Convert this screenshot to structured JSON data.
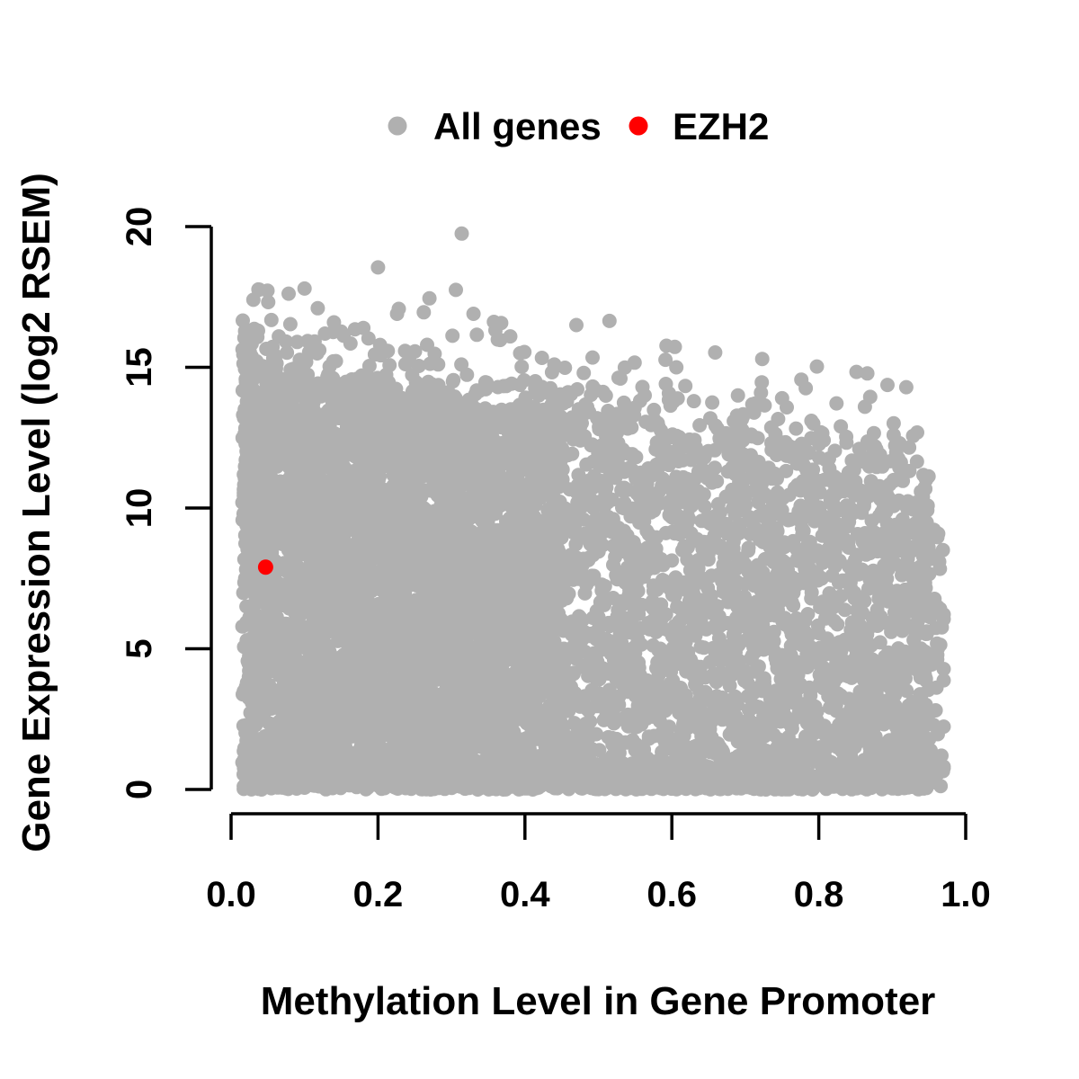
{
  "figure": {
    "legend": {
      "items": [
        {
          "label": "All genes",
          "color": "#b0b0b0"
        },
        {
          "label": "EZH2",
          "color": "#ff0000"
        }
      ]
    },
    "colors": {
      "all_genes": "#b0b0b0",
      "ezh2": "#ff0000",
      "axis": "#000000",
      "background": "#ffffff"
    }
  },
  "chart_data": {
    "type": "scatter",
    "title": "",
    "xlabel": "Methylation Level in Gene Promoter",
    "ylabel": "Gene Expression Level (log2 RSEM)",
    "xlim": [
      0,
      1
    ],
    "ylim": [
      0,
      20
    ],
    "grid": false,
    "legend_position": "top-center",
    "x_axis": {
      "tick_values": [
        0,
        0.2,
        0.4,
        0.6,
        0.8,
        1.0
      ],
      "tick_labels": [
        "0.0",
        "0.2",
        "0.4",
        "0.6",
        "0.8",
        "1.0"
      ]
    },
    "y_axis": {
      "tick_values": [
        0,
        5,
        10,
        15,
        20
      ],
      "tick_labels": [
        "0",
        "5",
        "10",
        "15",
        "20"
      ]
    },
    "series": [
      {
        "name": "All genes",
        "color": "#b0b0b0",
        "marker_radius_px": 8,
        "summary": "Several thousand genes forming a near-solid cloud: methylation 0.01-0.97, expression 0-19.8. Very dense solid block for x 0.02-0.45 up to ~14-15 log2 RSEM; moderately dense with gaps for x 0.45-0.95 up to ~11-13.5; expression upper envelope declines from ~15 at x=0 to ~11.5 at x=0.95; scattered outliers above the envelope.",
        "generated": true,
        "generation": {
          "seed": 42,
          "envelope": {
            "intercept": 14.9,
            "slope": -3.6
          },
          "x_clip": [
            0.01,
            0.97
          ],
          "y_clip": [
            0,
            19.85
          ],
          "components": [
            {
              "name": "dense-left-block",
              "count": 4600,
              "x0": 0.015,
              "xspan": 0.435,
              "xpow": 1.0,
              "y_mode": "env",
              "ypow": 1.0
            },
            {
              "name": "mid-right-block",
              "count": 2400,
              "x0": 0.45,
              "xspan": 0.5,
              "xpow": 1.0,
              "y_mode": "env",
              "ypow": 1.3
            },
            {
              "name": "bottom-strip",
              "count": 700,
              "x0": 0.015,
              "xspan": 0.92,
              "xpow": 1.0,
              "y_mode": "flat",
              "ypow": 1.0,
              "ycap": 0.55
            },
            {
              "name": "upper-fringe",
              "count": 300,
              "x0": 0.015,
              "xspan": 0.92,
              "xpow": 1.3,
              "y_mode": "fringe",
              "rate": 1.1,
              "ycap": 3.0
            },
            {
              "name": "right-edge",
              "count": 90,
              "x0": 0.93,
              "xspan": 0.045,
              "xpow": 1.0,
              "y_mode": "flat",
              "ypow": 1.3,
              "ycap": 9.5
            }
          ]
        },
        "notable_points": [
          [
            0.314,
            19.75
          ],
          [
            0.2,
            18.55
          ],
          [
            0.1,
            17.8
          ],
          [
            0.306,
            17.75
          ],
          [
            0.27,
            17.45
          ],
          [
            0.118,
            17.1
          ],
          [
            0.226,
            16.9
          ],
          [
            0.33,
            16.9
          ],
          [
            0.18,
            16.4
          ],
          [
            0.38,
            16.1
          ],
          [
            0.47,
            16.5
          ],
          [
            0.515,
            16.65
          ],
          [
            0.065,
            16.1
          ],
          [
            0.09,
            15.9
          ],
          [
            0.44,
            15.1
          ],
          [
            0.48,
            14.8
          ],
          [
            0.53,
            14.6
          ],
          [
            0.56,
            14.3
          ],
          [
            0.6,
            13.85
          ],
          [
            0.63,
            13.8
          ],
          [
            0.655,
            13.75
          ],
          [
            0.69,
            14.0
          ],
          [
            0.75,
            13.9
          ],
          [
            0.79,
            13.1
          ],
          [
            0.87,
            13.95
          ],
          [
            0.83,
            12.9
          ],
          [
            0.91,
            12.3
          ]
        ]
      },
      {
        "name": "EZH2",
        "color": "#ff0000",
        "marker_radius_px": 8.5,
        "points": [
          [
            0.047,
            7.9
          ]
        ]
      }
    ]
  }
}
